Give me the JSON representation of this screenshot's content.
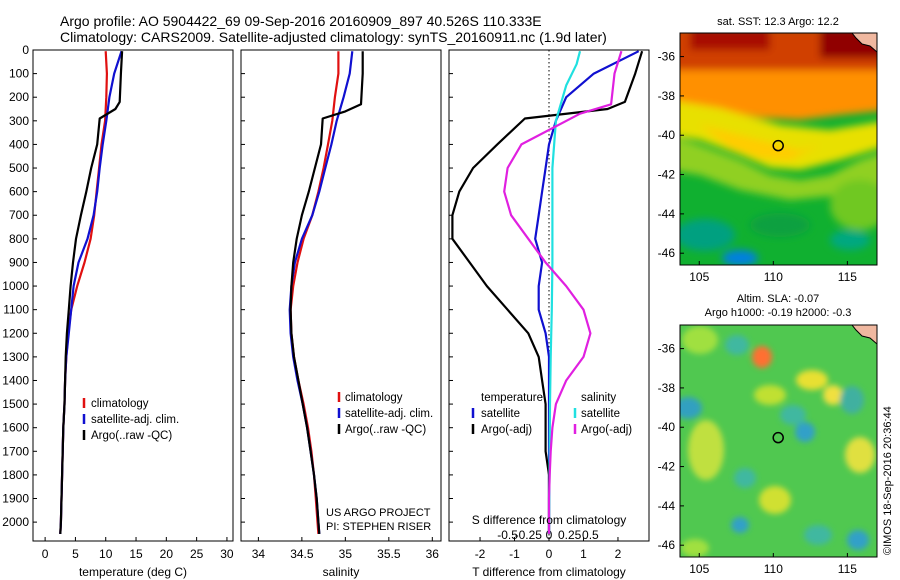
{
  "header": {
    "line1": "Argo profile: AO 5904422_69 09-Sep-2016 20160909_897 40.526S 110.333E",
    "line2": "Climatology: CARS2009. Satellite-adjusted climatology: synTS_20160911.nc (1.9d later)"
  },
  "colors": {
    "climatology": "#e01010",
    "satellite": "#1010d0",
    "argo": "#000000",
    "sat_salinity": "#20e0e0",
    "argo_salinity": "#e020e0"
  },
  "chart_data": [
    {
      "type": "line",
      "title": "",
      "xlabel": "temperature (deg C)",
      "xlim": [
        -2,
        31
      ],
      "xticks": [
        "0",
        "5",
        "10",
        "15",
        "20",
        "25",
        "30"
      ],
      "ylim": [
        2080,
        0
      ],
      "yticks": [
        "0",
        "100",
        "200",
        "300",
        "400",
        "500",
        "600",
        "700",
        "800",
        "900",
        "1000",
        "1100",
        "1200",
        "1300",
        "1400",
        "1500",
        "1600",
        "1700",
        "1800",
        "1900",
        "2000"
      ],
      "legend": {
        "position": "lower-middle",
        "entries": [
          "climatology",
          "satellite-adj. clim.",
          "Argo(..raw -QC)"
        ]
      },
      "series": [
        {
          "name": "climatology",
          "color": "#e01010",
          "points": [
            [
              10.0,
              5
            ],
            [
              10.2,
              100
            ],
            [
              10.1,
              200
            ],
            [
              9.9,
              300
            ],
            [
              9.3,
              400
            ],
            [
              8.9,
              500
            ],
            [
              8.5,
              600
            ],
            [
              8.1,
              700
            ],
            [
              7.5,
              800
            ],
            [
              6.5,
              900
            ],
            [
              5.3,
              1000
            ],
            [
              4.3,
              1100
            ],
            [
              3.8,
              1200
            ],
            [
              3.5,
              1300
            ],
            [
              3.3,
              1400
            ],
            [
              3.2,
              1500
            ],
            [
              3.0,
              1600
            ],
            [
              2.9,
              1700
            ],
            [
              2.8,
              1800
            ],
            [
              2.7,
              1900
            ],
            [
              2.6,
              2000
            ],
            [
              2.5,
              2050
            ]
          ]
        },
        {
          "name": "satellite-adj. clim.",
          "color": "#1010d0",
          "points": [
            [
              12.6,
              5
            ],
            [
              11.4,
              100
            ],
            [
              10.6,
              200
            ],
            [
              10.1,
              300
            ],
            [
              9.5,
              400
            ],
            [
              9.0,
              500
            ],
            [
              8.6,
              600
            ],
            [
              8.0,
              700
            ],
            [
              7.0,
              800
            ],
            [
              5.5,
              900
            ],
            [
              4.7,
              1000
            ],
            [
              4.3,
              1100
            ],
            [
              3.9,
              1200
            ],
            [
              3.5,
              1300
            ],
            [
              3.3,
              1400
            ],
            [
              3.2,
              1500
            ],
            [
              3.0,
              1600
            ],
            [
              2.9,
              1700
            ],
            [
              2.8,
              1800
            ],
            [
              2.7,
              1900
            ],
            [
              2.6,
              2000
            ],
            [
              2.5,
              2050
            ]
          ]
        },
        {
          "name": "Argo(..raw -QC)",
          "color": "#000000",
          "points": [
            [
              12.7,
              5
            ],
            [
              12.5,
              100
            ],
            [
              12.3,
              220
            ],
            [
              11.6,
              250
            ],
            [
              9.0,
              290
            ],
            [
              8.6,
              400
            ],
            [
              7.6,
              500
            ],
            [
              6.8,
              600
            ],
            [
              5.9,
              700
            ],
            [
              5.1,
              800
            ],
            [
              4.6,
              900
            ],
            [
              4.2,
              1000
            ],
            [
              3.9,
              1100
            ],
            [
              3.6,
              1200
            ],
            [
              3.4,
              1300
            ],
            [
              3.3,
              1400
            ],
            [
              3.2,
              1500
            ],
            [
              3.0,
              1600
            ],
            [
              2.9,
              1700
            ],
            [
              2.8,
              1800
            ],
            [
              2.7,
              1900
            ],
            [
              2.6,
              2000
            ],
            [
              2.5,
              2050
            ]
          ]
        }
      ]
    },
    {
      "type": "line",
      "title": "",
      "xlabel": "salinity",
      "xlim": [
        33.8,
        36.1
      ],
      "xticks": [
        "34",
        "34.5",
        "35",
        "35.5",
        "36"
      ],
      "ylim": [
        2080,
        0
      ],
      "legend": {
        "position": "lower-middle",
        "entries": [
          "climatology",
          "satellite-adj. clim.",
          "Argo(..raw -QC)"
        ]
      },
      "annotations": [
        "US ARGO PROJECT",
        "PI: STEPHEN RISER"
      ],
      "series": [
        {
          "name": "climatology",
          "color": "#e01010",
          "points": [
            [
              34.92,
              5
            ],
            [
              34.92,
              100
            ],
            [
              34.88,
              200
            ],
            [
              34.85,
              300
            ],
            [
              34.8,
              400
            ],
            [
              34.75,
              500
            ],
            [
              34.69,
              600
            ],
            [
              34.62,
              700
            ],
            [
              34.52,
              800
            ],
            [
              34.45,
              900
            ],
            [
              34.4,
              1000
            ],
            [
              34.37,
              1100
            ],
            [
              34.38,
              1200
            ],
            [
              34.41,
              1300
            ],
            [
              34.46,
              1400
            ],
            [
              34.52,
              1500
            ],
            [
              34.57,
              1600
            ],
            [
              34.61,
              1700
            ],
            [
              34.64,
              1800
            ],
            [
              34.66,
              1900
            ],
            [
              34.68,
              2000
            ],
            [
              34.69,
              2050
            ]
          ]
        },
        {
          "name": "satellite-adj. clim.",
          "color": "#1010d0",
          "points": [
            [
              35.08,
              5
            ],
            [
              35.05,
              100
            ],
            [
              34.98,
              200
            ],
            [
              34.9,
              300
            ],
            [
              34.84,
              400
            ],
            [
              34.77,
              500
            ],
            [
              34.7,
              600
            ],
            [
              34.62,
              700
            ],
            [
              34.5,
              800
            ],
            [
              34.42,
              900
            ],
            [
              34.38,
              1000
            ],
            [
              34.36,
              1100
            ],
            [
              34.37,
              1200
            ],
            [
              34.4,
              1300
            ],
            [
              34.45,
              1400
            ],
            [
              34.51,
              1500
            ],
            [
              34.56,
              1600
            ],
            [
              34.6,
              1700
            ],
            [
              34.64,
              1800
            ],
            [
              34.67,
              1900
            ],
            [
              34.69,
              2000
            ],
            [
              34.7,
              2050
            ]
          ]
        },
        {
          "name": "Argo(..raw -QC)",
          "color": "#000000",
          "points": [
            [
              35.2,
              5
            ],
            [
              35.2,
              100
            ],
            [
              35.18,
              230
            ],
            [
              35.0,
              260
            ],
            [
              34.74,
              290
            ],
            [
              34.72,
              400
            ],
            [
              34.65,
              500
            ],
            [
              34.58,
              600
            ],
            [
              34.5,
              700
            ],
            [
              34.44,
              800
            ],
            [
              34.4,
              900
            ],
            [
              34.38,
              1000
            ],
            [
              34.37,
              1100
            ],
            [
              34.38,
              1200
            ],
            [
              34.41,
              1300
            ],
            [
              34.46,
              1400
            ],
            [
              34.51,
              1500
            ],
            [
              34.56,
              1600
            ],
            [
              34.6,
              1700
            ],
            [
              34.64,
              1800
            ],
            [
              34.67,
              1900
            ],
            [
              34.69,
              2000
            ],
            [
              34.7,
              2050
            ]
          ]
        }
      ]
    },
    {
      "type": "line",
      "title": "",
      "xlabel": "T difference from climatology",
      "x2label": "S difference from climatology",
      "xlim": [
        -2.9,
        2.9
      ],
      "xticks": [
        "-2",
        "-1",
        "0",
        "1",
        "2"
      ],
      "x2ticks": [
        "-0.5",
        "-0.25",
        "0",
        "0.25",
        "0.5"
      ],
      "ylim": [
        2080,
        0
      ],
      "legend": {
        "position": "lower",
        "groups": [
          {
            "title": "temperature",
            "entries": [
              "satellite",
              "Argo(-adj)"
            ]
          },
          {
            "title": "salinity",
            "entries": [
              "satellite",
              "Argo(-adj)"
            ]
          }
        ]
      },
      "series": [
        {
          "name": "temperature satellite",
          "color": "#1010d0",
          "points": [
            [
              2.6,
              5
            ],
            [
              1.3,
              100
            ],
            [
              0.5,
              200
            ],
            [
              0.2,
              300
            ],
            [
              0.0,
              400
            ],
            [
              -0.1,
              500
            ],
            [
              -0.2,
              600
            ],
            [
              -0.3,
              700
            ],
            [
              -0.4,
              800
            ],
            [
              -0.2,
              900
            ],
            [
              -0.3,
              1000
            ],
            [
              -0.3,
              1100
            ],
            [
              -0.1,
              1200
            ],
            [
              0.0,
              1300
            ],
            [
              0.0,
              1400
            ],
            [
              0.0,
              1500
            ],
            [
              0.0,
              1600
            ],
            [
              0.0,
              1700
            ],
            [
              0.0,
              1800
            ],
            [
              0.0,
              1900
            ],
            [
              0.0,
              2000
            ],
            [
              0.0,
              2050
            ]
          ]
        },
        {
          "name": "temperature Argo(-adj)",
          "color": "#000000",
          "points": [
            [
              2.7,
              5
            ],
            [
              2.5,
              100
            ],
            [
              2.2,
              220
            ],
            [
              1.7,
              250
            ],
            [
              -0.7,
              290
            ],
            [
              -1.5,
              400
            ],
            [
              -2.2,
              500
            ],
            [
              -2.6,
              600
            ],
            [
              -2.8,
              700
            ],
            [
              -2.8,
              800
            ],
            [
              -2.3,
              900
            ],
            [
              -1.8,
              1000
            ],
            [
              -1.2,
              1100
            ],
            [
              -0.6,
              1200
            ],
            [
              -0.3,
              1300
            ],
            [
              -0.2,
              1400
            ],
            [
              -0.1,
              1500
            ],
            [
              -0.1,
              1600
            ],
            [
              -0.1,
              1700
            ],
            [
              0.0,
              1800
            ],
            [
              0.0,
              1900
            ],
            [
              0.0,
              2000
            ],
            [
              0.0,
              2050
            ]
          ]
        },
        {
          "name": "salinity satellite",
          "color": "#20e0e0",
          "points": [
            [
              0.9,
              5
            ],
            [
              0.8,
              60
            ],
            [
              0.5,
              150
            ],
            [
              0.2,
              300
            ],
            [
              0.1,
              500
            ],
            [
              0.1,
              700
            ],
            [
              0.1,
              900
            ],
            [
              0.08,
              1100
            ],
            [
              0.05,
              1300
            ],
            [
              0.03,
              1500
            ],
            [
              0.02,
              1700
            ],
            [
              0.01,
              1900
            ],
            [
              0.0,
              2050
            ]
          ]
        },
        {
          "name": "salinity Argo(-adj)",
          "color": "#e020e0",
          "points": [
            [
              2.1,
              5
            ],
            [
              1.9,
              100
            ],
            [
              1.8,
              230
            ],
            [
              0.9,
              270
            ],
            [
              -0.8,
              400
            ],
            [
              -1.2,
              500
            ],
            [
              -1.3,
              600
            ],
            [
              -1.1,
              700
            ],
            [
              -0.6,
              800
            ],
            [
              -0.1,
              900
            ],
            [
              0.5,
              1000
            ],
            [
              1.0,
              1100
            ],
            [
              1.2,
              1200
            ],
            [
              1.0,
              1300
            ],
            [
              0.5,
              1400
            ],
            [
              0.2,
              1500
            ],
            [
              0.1,
              1600
            ],
            [
              0.05,
              1700
            ],
            [
              0.02,
              1800
            ],
            [
              0.0,
              1900
            ],
            [
              0.0,
              2050
            ]
          ]
        }
      ]
    }
  ],
  "maps": {
    "sst": {
      "title": "sat. SST: 12.3 Argo: 12.2",
      "yticks": [
        "-36",
        "-38",
        "-40",
        "-42",
        "-44",
        "-46"
      ],
      "xticks": [
        "105",
        "110",
        "115"
      ],
      "marker": {
        "lon": 110.33,
        "lat": -40.53
      }
    },
    "sla": {
      "title1": "Altim. SLA: -0.07",
      "title2": "Argo h1000: -0.19 h2000: -0.3",
      "yticks": [
        "-36",
        "-38",
        "-40",
        "-42",
        "-44",
        "-46"
      ],
      "xticks": [
        "105",
        "110",
        "115"
      ],
      "marker": {
        "lon": 110.33,
        "lat": -40.53
      }
    }
  },
  "footer": {
    "credit": "©IMOS 18-Sep-2016 20:36:44"
  }
}
